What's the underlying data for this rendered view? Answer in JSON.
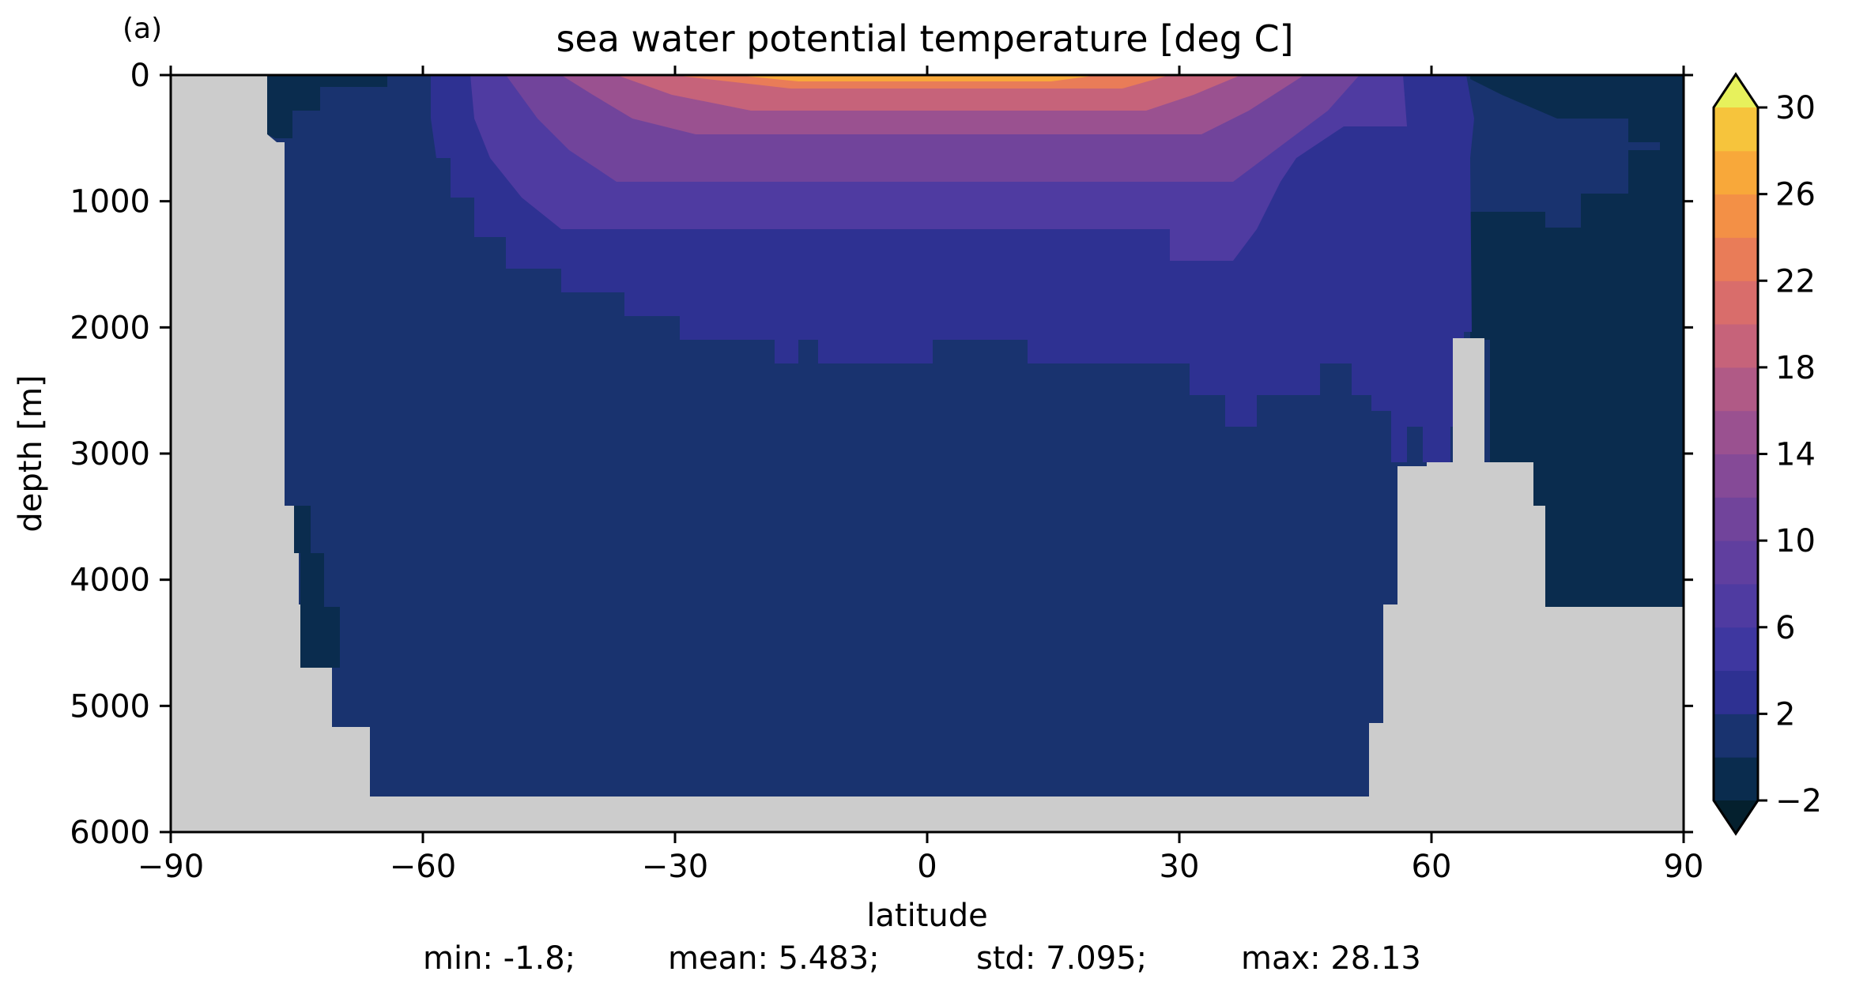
{
  "panel_label": "(a)",
  "chart_data": {
    "type": "heatmap",
    "title": "sea water potential temperature [deg C]",
    "xlabel": "latitude",
    "ylabel": "depth [m]",
    "xlim": [
      -90,
      90
    ],
    "ylim": [
      6000,
      0
    ],
    "x_ticks": [
      -90,
      -60,
      -30,
      0,
      30,
      60,
      90
    ],
    "x_tick_labels": [
      "−90",
      "−60",
      "−30",
      "0",
      "30",
      "60",
      "90"
    ],
    "y_ticks": [
      0,
      1000,
      2000,
      3000,
      4000,
      5000,
      6000
    ],
    "y_tick_labels": [
      "0",
      "1000",
      "2000",
      "3000",
      "4000",
      "5000",
      "6000"
    ],
    "colorbar": {
      "levels": [
        -2,
        0,
        2,
        4,
        6,
        8,
        10,
        12,
        14,
        16,
        18,
        20,
        22,
        24,
        26,
        28,
        30
      ],
      "tick_values": [
        -2,
        2,
        6,
        10,
        14,
        18,
        22,
        26,
        30
      ],
      "tick_labels": [
        "−2",
        "2",
        "6",
        "10",
        "14",
        "18",
        "22",
        "26",
        "30"
      ],
      "colors": [
        "#0a2c4e",
        "#19336f",
        "#2e3192",
        "#3e37a0",
        "#4f3ba1",
        "#603f9f",
        "#71449b",
        "#854a97",
        "#9a5190",
        "#b05a86",
        "#c6637a",
        "#d96d6b",
        "#e97c58",
        "#f39046",
        "#f8a83a",
        "#f6c43c",
        "#f0e24d"
      ],
      "under_color": "#04202e",
      "over_color": "#e7f15c",
      "extend": "both"
    },
    "land_color": "#cccccc",
    "zonal_mean_section": [
      {
        "lat_range": [
          -90,
          -78
        ],
        "depth_range": [
          0,
          6000
        ],
        "value": "land"
      },
      {
        "lat_range": [
          -78,
          -65
        ],
        "depth_range": [
          0,
          600
        ],
        "value": -1.5
      },
      {
        "lat_range": [
          -65,
          55
        ],
        "depth_range": [
          2500,
          5700
        ],
        "value": 1.0
      },
      {
        "lat_range": [
          -60,
          62
        ],
        "depth_range": [
          500,
          2100
        ],
        "value": 2.5
      },
      {
        "lat_range": [
          -20,
          20
        ],
        "depth_range": [
          0,
          200
        ],
        "value": 26.0
      },
      {
        "lat_range": [
          64,
          90
        ],
        "depth_range": [
          1000,
          4200
        ],
        "value": -0.5
      },
      {
        "lat_range": [
          55,
          90
        ],
        "depth_range": [
          4200,
          6000
        ],
        "value": "land"
      }
    ],
    "summary": {
      "min": -1.8,
      "mean": 5.483,
      "std": 7.095,
      "max": 28.13
    }
  },
  "stats": {
    "min": "min: -1.8;",
    "mean": "mean: 5.483;",
    "std": "std: 7.095;",
    "max": "max: 28.13"
  }
}
